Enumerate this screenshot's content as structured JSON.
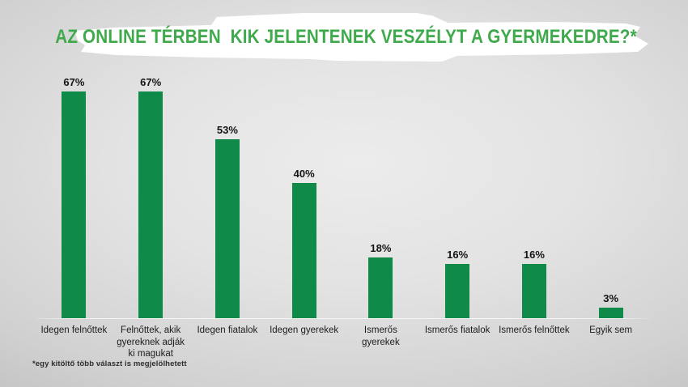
{
  "title": "AZ ONLINE TÉRBEN  KIK JELENTENEK VESZÉLYT A GYERMEKEDRE?*",
  "footnote": "*egy kitöltő több választ is megjelölhetett",
  "colors": {
    "bar": "#108a48",
    "title_text": "#3faa4c",
    "banner": "#ffffff",
    "value_label": "#141414",
    "category_label": "#1d1d1b",
    "background_center": "#ececec",
    "background_edge": "#a8a8a8"
  },
  "chart_data": {
    "type": "bar",
    "title": "AZ ONLINE TÉRBEN  KIK JELENTENEK VESZÉLYT A GYERMEKEDRE?*",
    "categories": [
      "Idegen felnőttek",
      "Felnőttek, akik gyereknek adják ki magukat",
      "Idegen fiatalok",
      "Idegen gyerekek",
      "Ismerős gyerekek",
      "Ismerős fiatalok",
      "Ismerős felnőttek",
      "Egyik sem"
    ],
    "values": [
      67,
      67,
      53,
      40,
      18,
      16,
      16,
      3
    ],
    "value_labels": [
      "67%",
      "67%",
      "53%",
      "40%",
      "18%",
      "16%",
      "16%",
      "3%"
    ],
    "xlabel": "",
    "ylabel": "",
    "ylim": [
      0,
      70
    ],
    "grid": false,
    "legend": false,
    "bar_color": "#108a48",
    "footnote": "*egy kitöltő több választ is megjelölhetett"
  }
}
